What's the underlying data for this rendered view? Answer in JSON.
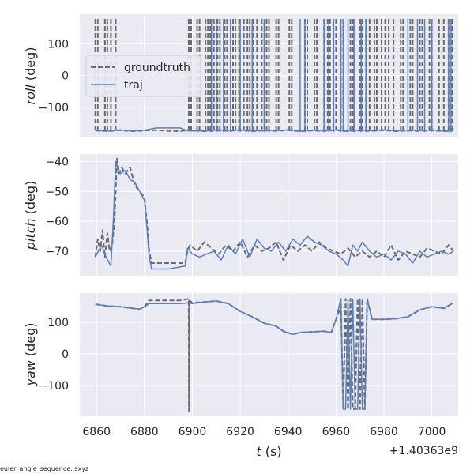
{
  "footnote": "euler_angle_sequence: sxyz",
  "colors": {
    "groundtruth": "#6b6b6b",
    "traj": "#5a7fbf",
    "panel": "#eaeaf2",
    "grid": "#ffffff"
  },
  "chart_data": [
    {
      "type": "line",
      "ylabel_var": "roll",
      "ylabel_unit": " (deg)",
      "xlim": [
        6853,
        7011
      ],
      "ylim": [
        -195,
        193
      ],
      "yticks": [
        -100,
        0,
        100
      ],
      "grid": true,
      "legend": {
        "placement": "upper left",
        "entries": [
          "groundtruth",
          "traj"
        ]
      },
      "series": [
        {
          "name": "groundtruth",
          "style": "dashed",
          "x": [
            6859.5,
            6865,
            6870,
            6875,
            6880,
            6885,
            6890,
            6895,
            6898,
            6905,
            6910,
            6915,
            6920,
            6925,
            6930,
            6935,
            6940,
            6945,
            6950,
            6955,
            6960,
            6965,
            6970,
            6975,
            6980,
            6985,
            6990,
            6995,
            7000,
            7005,
            7009
          ],
          "y": [
            -173,
            -175,
            -172,
            -175,
            -173,
            -172,
            -174,
            -175,
            -172,
            -175,
            -173,
            -174,
            -172,
            -175,
            -173,
            -174,
            -172,
            -175,
            -173,
            -174,
            -172,
            -175,
            -173,
            -174,
            -172,
            -175,
            -173,
            -174,
            -172,
            -175,
            -173
          ],
          "wraps": [
            6859.5,
            6860.5,
            6863.5,
            6864.5,
            6866,
            6868,
            6898.5,
            6899.5,
            6902,
            6903,
            6905.5,
            6906.5,
            6907.5,
            6909,
            6910.5,
            6911.5,
            6913.5,
            6914.5,
            6916,
            6917,
            6918,
            6919.5,
            6921.5,
            6923,
            6924,
            6925.5,
            6927,
            6929,
            6931,
            6932,
            6935,
            6936,
            6940.5,
            6941.5,
            6947,
            6948,
            6951,
            6952,
            6955,
            6956.5,
            6957.5,
            6960,
            6962,
            6963,
            6966,
            6967,
            6970,
            6971,
            6972.5,
            6974,
            6976,
            6977,
            6979,
            6980.5,
            6982,
            6984,
            6987,
            6988,
            6991,
            6992,
            6995,
            6996,
            6999,
            7000,
            7003,
            7005,
            7007,
            7008.5
          ]
        },
        {
          "name": "traj",
          "style": "solid",
          "x": [
            6859.5,
            6865,
            6870,
            6875,
            6880,
            6885,
            6890,
            6895,
            6898,
            6905,
            6910,
            6915,
            6920,
            6925,
            6930,
            6935,
            6940,
            6945,
            6950,
            6955,
            6960,
            6965,
            6970,
            6975,
            6980,
            6985,
            6990,
            6995,
            7000,
            7005,
            7009
          ],
          "y": [
            -173,
            -174,
            -171,
            -174,
            -172,
            -165,
            -165,
            -165,
            -174,
            -174,
            -172,
            -173,
            -171,
            -174,
            -172,
            -173,
            -171,
            -174,
            -172,
            -173,
            -171,
            -174,
            -172,
            -173,
            -171,
            -174,
            -172,
            -173,
            -171,
            -174,
            -172
          ],
          "wraps": [
            6908,
            6910,
            6913,
            6916,
            6920,
            6925,
            6930,
            6945,
            6947,
            6955,
            6957,
            6959,
            6962,
            6963,
            6965,
            6967.5,
            6970.5,
            6972.5,
            6990,
            6994,
            6997,
            7000,
            7007,
            7008
          ]
        }
      ]
    },
    {
      "type": "line",
      "ylabel_var": "pitch",
      "ylabel_unit": " (deg)",
      "xlim": [
        6853,
        7011
      ],
      "ylim": [
        -78.5,
        -37.5
      ],
      "yticks": [
        -70,
        -60,
        -50,
        -40
      ],
      "grid": true,
      "series": [
        {
          "name": "groundtruth",
          "style": "dashed",
          "x": [
            6859.5,
            6860.5,
            6861.5,
            6862.5,
            6863.5,
            6864.5,
            6865.5,
            6866.5,
            6867.5,
            6868.5,
            6869.5,
            6870.5,
            6872,
            6874,
            6876,
            6878,
            6880,
            6881,
            6882,
            6883,
            6890,
            6897,
            6898,
            6899,
            6902,
            6905,
            6908,
            6911,
            6914,
            6917,
            6920,
            6923,
            6926,
            6929,
            6932,
            6935,
            6938,
            6941,
            6944,
            6947,
            6950,
            6953,
            6956,
            6959,
            6962,
            6965,
            6968,
            6971,
            6974,
            6977,
            6980,
            6983,
            6986,
            6989,
            6992,
            6995,
            6998,
            7001,
            7004,
            7007,
            7009
          ],
          "y": [
            -72,
            -66,
            -70,
            -63,
            -72,
            -64,
            -70,
            -68,
            -60,
            -39,
            -44,
            -42,
            -44,
            -42,
            -48,
            -50,
            -52,
            -60,
            -70,
            -74,
            -74,
            -74,
            -70,
            -68,
            -70,
            -67,
            -69,
            -71,
            -68,
            -70,
            -67,
            -72,
            -68,
            -70,
            -69,
            -67,
            -73,
            -68,
            -70,
            -68,
            -70,
            -67,
            -69,
            -70,
            -71,
            -69,
            -72,
            -70,
            -72,
            -70,
            -72,
            -68,
            -73,
            -70,
            -71,
            -72,
            -69,
            -70,
            -71,
            -68,
            -70
          ]
        },
        {
          "name": "traj",
          "style": "solid",
          "x": [
            6859.5,
            6862,
            6864,
            6866,
            6867,
            6868,
            6869,
            6870,
            6872,
            6874,
            6876,
            6878,
            6880,
            6881,
            6882,
            6883,
            6890,
            6897,
            6898,
            6900,
            6903,
            6906,
            6909,
            6912,
            6915,
            6918,
            6921,
            6924,
            6927,
            6930,
            6933,
            6936,
            6939,
            6942,
            6945,
            6948,
            6951,
            6954,
            6957,
            6960,
            6963,
            6965,
            6967,
            6969,
            6971,
            6974,
            6977,
            6980,
            6983,
            6986,
            6989,
            6992,
            6995,
            6998,
            7001,
            7004,
            7007,
            7009
          ],
          "y": [
            -72,
            -68,
            -72,
            -75,
            -60,
            -40,
            -43,
            -44,
            -43,
            -46,
            -47,
            -50,
            -53,
            -62,
            -72,
            -76,
            -76,
            -75,
            -69,
            -71,
            -72,
            -71,
            -70,
            -73,
            -68,
            -71,
            -66,
            -72,
            -66,
            -69,
            -70,
            -67,
            -70,
            -66,
            -68,
            -65,
            -67,
            -68,
            -70,
            -71,
            -73,
            -75,
            -68,
            -70,
            -67,
            -70,
            -72,
            -71,
            -73,
            -70,
            -71,
            -74,
            -70,
            -72,
            -71,
            -70,
            -71,
            -70
          ]
        }
      ]
    },
    {
      "type": "line",
      "ylabel_var": "yaw",
      "ylabel_unit": " (deg)",
      "xlabel_var": "t",
      "xlabel_unit": " (s)",
      "offset_text": "+1.40363e9",
      "xlim": [
        6853,
        7011
      ],
      "ylim": [
        -195,
        193
      ],
      "xticks": [
        6860,
        6880,
        6900,
        6920,
        6940,
        6960,
        6980,
        7000
      ],
      "yticks": [
        -100,
        0,
        100
      ],
      "grid": true,
      "series": [
        {
          "name": "groundtruth",
          "style": "dashed",
          "x": [
            6859.5,
            6862,
            6865,
            6870,
            6875,
            6878,
            6880,
            6882,
            6885,
            6890,
            6895,
            6898.5,
            6898.6,
            6898.7,
            6900,
            6905,
            6910,
            6915,
            6920,
            6925,
            6930,
            6935,
            6938,
            6942,
            6945,
            6950,
            6955,
            6958,
            6960,
            6961.5,
            6962,
            6963,
            6964,
            6965,
            6966,
            6967,
            6968,
            6969,
            6970,
            6971,
            6972,
            6973,
            6975,
            6980,
            6985,
            6990,
            6995,
            7000,
            7005,
            7009
          ],
          "y": [
            158,
            155,
            152,
            150,
            145,
            142,
            150,
            170,
            170,
            170,
            170,
            175,
            -180,
            170,
            162,
            165,
            168,
            160,
            135,
            118,
            98,
            88,
            72,
            62,
            68,
            70,
            72,
            68,
            110,
            140,
            175,
            -175,
            175,
            -175,
            175,
            -175,
            -175,
            175,
            -175,
            175,
            -175,
            175,
            110,
            110,
            112,
            118,
            140,
            150,
            145,
            162
          ]
        },
        {
          "name": "traj",
          "style": "solid",
          "x": [
            6859.5,
            6862,
            6865,
            6870,
            6875,
            6878,
            6880,
            6882,
            6885,
            6890,
            6895,
            6898,
            6900,
            6905,
            6910,
            6915,
            6920,
            6925,
            6930,
            6935,
            6938,
            6942,
            6945,
            6950,
            6955,
            6958,
            6960,
            6962,
            6963,
            6964,
            6965,
            6966,
            6967,
            6968,
            6969,
            6970,
            6971,
            6972,
            6973,
            6975,
            6980,
            6985,
            6990,
            6995,
            7000,
            7005,
            7009
          ],
          "y": [
            158,
            155,
            152,
            150,
            145,
            142,
            150,
            160,
            160,
            160,
            160,
            162,
            160,
            165,
            168,
            160,
            135,
            118,
            98,
            88,
            72,
            62,
            68,
            70,
            72,
            68,
            110,
            175,
            -175,
            -175,
            175,
            -175,
            175,
            -175,
            -175,
            175,
            -175,
            -175,
            175,
            110,
            110,
            112,
            118,
            140,
            150,
            145,
            162
          ]
        }
      ]
    }
  ]
}
